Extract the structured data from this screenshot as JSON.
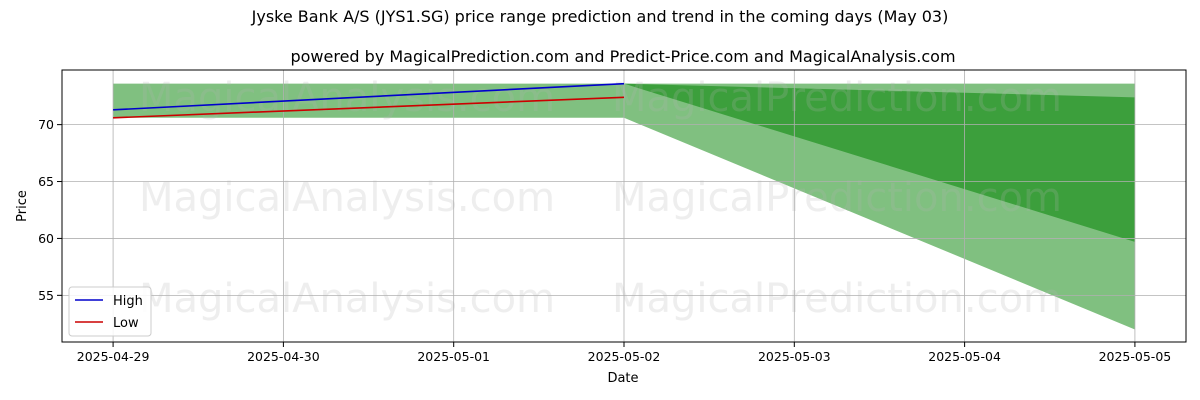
{
  "chart_data": {
    "type": "line",
    "title": "Jyske Bank A/S (JYS1.SG) price range prediction and trend in the coming days (May 03)",
    "subtitle": "powered by MagicalPrediction.com and Predict-Price.com and MagicalAnalysis.com",
    "xlabel": "Date",
    "ylabel": "Price",
    "x_ticks": [
      "2025-04-29",
      "2025-04-30",
      "2025-05-01",
      "2025-05-02",
      "2025-05-03",
      "2025-05-04",
      "2025-05-05"
    ],
    "y_ticks": [
      55,
      60,
      65,
      70
    ],
    "xlim": [
      -0.3,
      6.3
    ],
    "ylim": [
      50.9,
      74.8
    ],
    "grid": true,
    "legend_position": "lower-left",
    "series": [
      {
        "name": "High",
        "color": "#0000cc",
        "x": [
          0,
          3
        ],
        "values": [
          71.3,
          73.6
        ]
      },
      {
        "name": "Low",
        "color": "#cc0000",
        "x": [
          0,
          3
        ],
        "values": [
          70.6,
          72.4
        ]
      }
    ],
    "bands": [
      {
        "color": "#80c080",
        "x": [
          0,
          3
        ],
        "upper": [
          73.6,
          73.6
        ],
        "lower": [
          70.6,
          70.6
        ]
      },
      {
        "color": "#80c080",
        "x": [
          3,
          6
        ],
        "upper": [
          73.6,
          73.6
        ],
        "lower": [
          70.6,
          52.0
        ]
      },
      {
        "color": "#3c9f3c",
        "x": [
          3,
          6
        ],
        "upper": [
          73.6,
          72.4
        ],
        "lower": [
          73.6,
          59.7
        ]
      }
    ],
    "watermarks": [
      "MagicalAnalysis.com",
      "MagicalPrediction.com"
    ]
  }
}
